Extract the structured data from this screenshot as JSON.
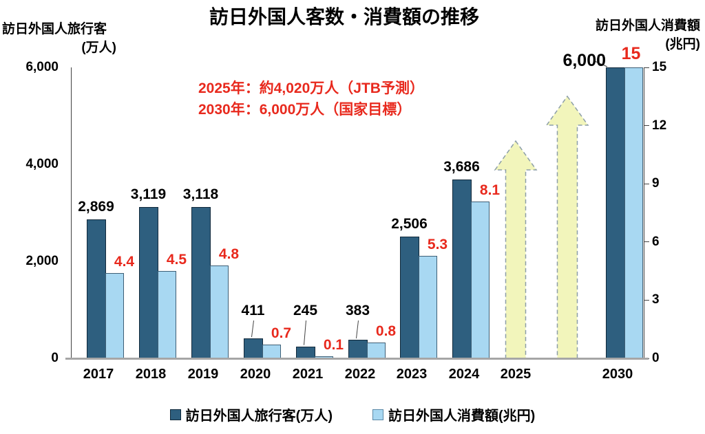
{
  "chart_data": {
    "type": "bar",
    "title": "訪日外国人客数・消費額の推移",
    "left_axis": {
      "title_line1": "訪日外国人旅行客",
      "title_line2": "(万人)",
      "max": 6000,
      "min": 0,
      "ticks": [
        {
          "value": 0,
          "label": "0"
        },
        {
          "value": 2000,
          "label": "2,000"
        },
        {
          "value": 4000,
          "label": "4,000"
        },
        {
          "value": 6000,
          "label": "6,000"
        }
      ]
    },
    "right_axis": {
      "title_line1": "訪日外国人消費額",
      "title_line2": "(兆円)",
      "max": 15,
      "min": 0,
      "ticks": [
        {
          "value": 0,
          "label": "0"
        },
        {
          "value": 3,
          "label": "3"
        },
        {
          "value": 6,
          "label": "6"
        },
        {
          "value": 9,
          "label": "9"
        },
        {
          "value": 12,
          "label": "12"
        },
        {
          "value": 15,
          "label": "15"
        }
      ]
    },
    "categories": [
      "2017",
      "2018",
      "2019",
      "2020",
      "2021",
      "2022",
      "2023",
      "2024",
      "2025",
      "2030"
    ],
    "series": [
      {
        "name": "訪日外国人旅行客(万人)",
        "color": "#2E5F7F",
        "axis": "left",
        "values": [
          2869,
          3119,
          3118,
          411,
          245,
          383,
          2506,
          3686,
          null,
          6000
        ],
        "labels": [
          "2,869",
          "3,119",
          "3,118",
          "411",
          "245",
          "383",
          "2,506",
          "3,686",
          "",
          "6,000"
        ]
      },
      {
        "name": "訪日外国人消費額(兆円)",
        "color": "#A8D8F2",
        "axis": "right",
        "values": [
          4.4,
          4.5,
          4.8,
          0.7,
          0.1,
          0.8,
          5.3,
          8.1,
          null,
          15
        ],
        "labels": [
          "4.4",
          "4.5",
          "4.8",
          "0.7",
          "0.1",
          "0.8",
          "5.3",
          "8.1",
          "",
          "15"
        ]
      }
    ],
    "annotations": [
      "2025年：約4,020万人（JTB予測）",
      "2030年：6,000万人（国家目標）"
    ],
    "forecast_arrows": [
      {
        "anchor": "2025",
        "top_value": 4500
      },
      {
        "anchor": "2026-2029",
        "top_value": 5420
      }
    ],
    "layout_hints": {
      "legend_position": "bottom",
      "grid": "off",
      "visitor_label_modes": [
        "above",
        "above",
        "above",
        "callout",
        "callout",
        "callout",
        "above",
        "above",
        "none",
        "left-callout"
      ],
      "spending_label_modes": [
        "right",
        "right",
        "right",
        "right",
        "right",
        "right",
        "right",
        "right",
        "none",
        "above"
      ]
    },
    "colors": {
      "visitors_bar": "#2E5F7F",
      "spending_bar": "#A8D8F2",
      "value_label_red": "#E8291D",
      "arrow_fill": "#F2F5BB",
      "arrow_stroke": "#8C9EA8",
      "axis_line": "#404040",
      "baseline": "#A6A6A6"
    }
  }
}
